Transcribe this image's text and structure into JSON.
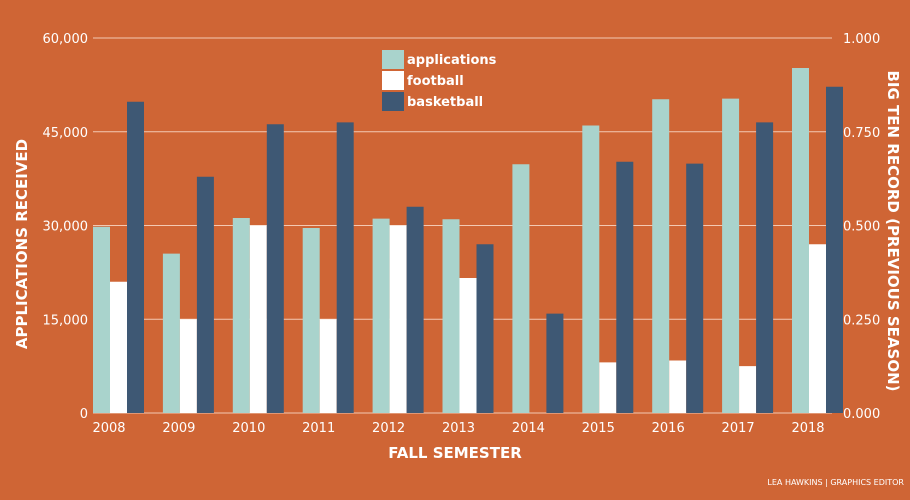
{
  "chart_data": {
    "type": "bar",
    "title": "",
    "xlabel": "FALL SEMESTER",
    "ylabel_left": "APPLICATIONS RECEIVED",
    "ylabel_right": "BIG TEN RECORD (PREVIOUS SEASON)",
    "categories": [
      "2008",
      "2009",
      "2010",
      "2011",
      "2012",
      "2013",
      "2014",
      "2015",
      "2016",
      "2017",
      "2018"
    ],
    "ylim_left": [
      0,
      60000
    ],
    "ylim_right": [
      0,
      1
    ],
    "yticks_left": [
      "0",
      "15,000",
      "30,000",
      "45,000",
      "60,000"
    ],
    "yticks_right": [
      "0.000",
      "0.250",
      "0.500",
      "0.750",
      "1.000"
    ],
    "grid": true,
    "legend_position": "top-center",
    "series": [
      {
        "name": "applications",
        "axis": "left",
        "color": "#a9d3cc",
        "values": [
          29800,
          25500,
          31200,
          29600,
          31100,
          31000,
          39800,
          46000,
          50200,
          50300,
          55200
        ]
      },
      {
        "name": "football",
        "axis": "right",
        "color": "#ffffff",
        "values": [
          0.35,
          0.25,
          0.5,
          0.25,
          0.5,
          0.36,
          0,
          0.135,
          0.14,
          0.125,
          0.45
        ]
      },
      {
        "name": "basketball",
        "axis": "right",
        "color": "#3e5874",
        "values": [
          0.83,
          0.63,
          0.77,
          0.775,
          0.55,
          0.45,
          0.265,
          0.67,
          0.665,
          0.775,
          0.87
        ]
      }
    ]
  },
  "credit": "LEA HAWKINS | GRAPHICS EDITOR",
  "colors": {
    "background": "#cf6535",
    "gridline": "#f3c9b3",
    "text": "#ffffff"
  }
}
